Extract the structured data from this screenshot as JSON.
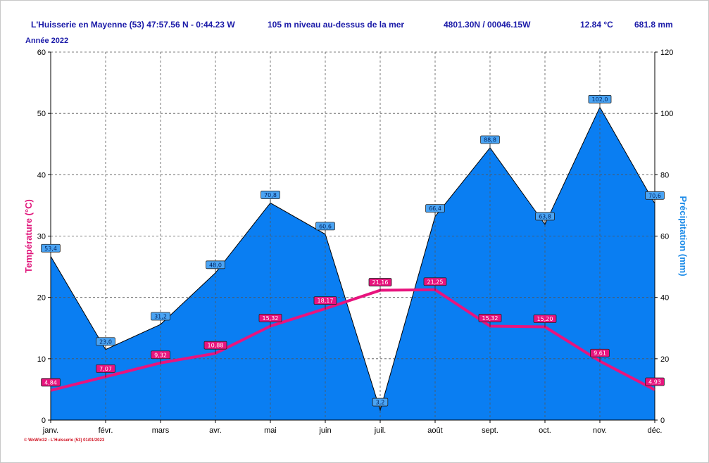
{
  "header": {
    "station": "L'Huisserie en Mayenne (53) 47:57.56 N - 0:44.23 W",
    "altitude": "105 m niveau au-dessus de la mer",
    "coords": "4801.30N / 00046.15W",
    "mean_temp": "12.84 °C",
    "total_precip": "681.8 mm"
  },
  "year_label": "Année  2022",
  "footer": "© WxWin32 - L'Huisserie (53)  01/01/2023",
  "colors": {
    "temperature": "#e8147e",
    "precipitation_fill": "#0a7ef2",
    "precip_label_bg": "#4aa4f4",
    "temp_label_bg": "#e8147e",
    "header_text": "#1a1aa8"
  },
  "chart_data": {
    "type": "area",
    "categories": [
      "janv.",
      "févr.",
      "mars",
      "avr.",
      "mai",
      "juin",
      "juil.",
      "août",
      "sept.",
      "oct.",
      "nov.",
      "déc."
    ],
    "ylabel": "Température  (°C)",
    "ylabel_right": "Précipitation  (mm)",
    "ylim": [
      0,
      60
    ],
    "ylim_right": [
      0,
      120
    ],
    "yticks": [
      "0",
      "10",
      "20",
      "30",
      "40",
      "50",
      "60"
    ],
    "yticks_right": [
      "0",
      "20",
      "40",
      "60",
      "80",
      "100",
      "120"
    ],
    "grid": true,
    "series": [
      {
        "axis": "right",
        "values": [
          53.4,
          23.0,
          31.2,
          48.0,
          70.8,
          60.6,
          3.2,
          66.4,
          88.8,
          63.8,
          102.0,
          70.6
        ],
        "labels": [
          "53,4",
          "23,0",
          "31,2",
          "48,0",
          "70,8",
          "60,6",
          "3,2",
          "66,4",
          "88,8",
          "63,8",
          "102,0",
          "70,6"
        ]
      },
      {
        "axis": "left",
        "values": [
          4.84,
          7.07,
          9.32,
          10.88,
          15.32,
          18.17,
          21.16,
          21.25,
          15.32,
          15.2,
          9.61,
          4.93
        ],
        "labels": [
          "4,84",
          "7,07",
          "9,32",
          "10,88",
          "15,32",
          "18,17",
          "21,16",
          "21,25",
          "15,32",
          "15,20",
          "9,61",
          "4,93"
        ]
      }
    ]
  }
}
